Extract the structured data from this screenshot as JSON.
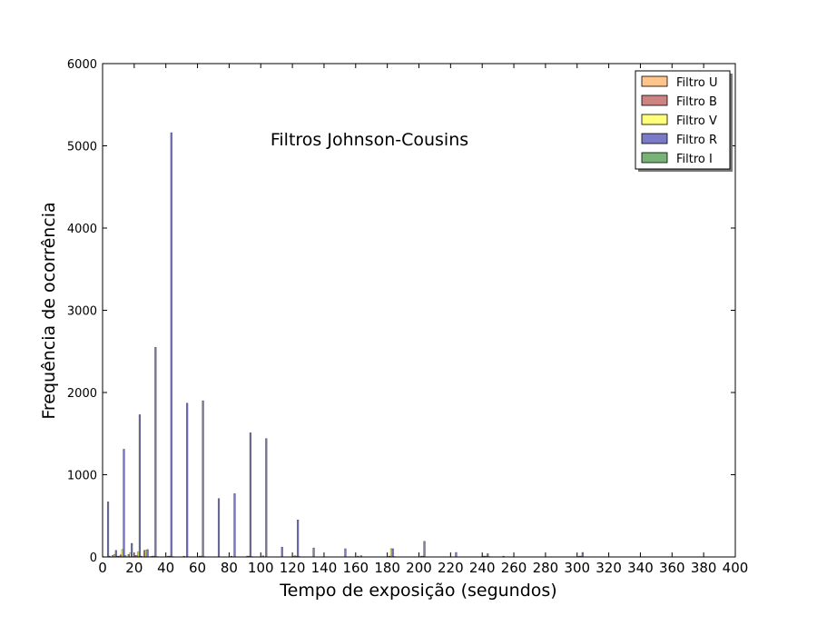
{
  "chart_data": {
    "type": "bar",
    "title": "Filtros Johnson-Cousins",
    "xlabel": "Tempo de exposição (segundos)",
    "ylabel": "Frequência de ocorrência",
    "xlim": [
      0,
      400
    ],
    "ylim": [
      0,
      6000
    ],
    "xticks": [
      0,
      20,
      40,
      60,
      80,
      100,
      120,
      140,
      160,
      180,
      200,
      220,
      240,
      260,
      280,
      300,
      320,
      340,
      360,
      380,
      400
    ],
    "yticks": [
      0,
      1000,
      2000,
      3000,
      4000,
      5000,
      6000
    ],
    "grid": false,
    "legend_position": "top-right",
    "series": [
      {
        "name": "Filtro U",
        "color": "#ffa54c",
        "points": [
          [
            0,
            5
          ],
          [
            10,
            10
          ],
          [
            20,
            15
          ],
          [
            30,
            5
          ],
          [
            40,
            5
          ],
          [
            60,
            5
          ],
          [
            120,
            5
          ],
          [
            180,
            5
          ],
          [
            240,
            10
          ],
          [
            300,
            5
          ]
        ]
      },
      {
        "name": "Filtro B",
        "color": "#b0413e",
        "points": [
          [
            5,
            20
          ],
          [
            10,
            25
          ],
          [
            15,
            30
          ],
          [
            20,
            20
          ],
          [
            25,
            80
          ],
          [
            30,
            10
          ],
          [
            40,
            10
          ],
          [
            50,
            10
          ],
          [
            60,
            10
          ],
          [
            80,
            10
          ],
          [
            90,
            10
          ],
          [
            100,
            15
          ],
          [
            120,
            15
          ],
          [
            160,
            10
          ],
          [
            180,
            10
          ],
          [
            200,
            10
          ],
          [
            240,
            10
          ],
          [
            300,
            10
          ]
        ]
      },
      {
        "name": "Filtro V",
        "color": "#ffff33",
        "points": [
          [
            5,
            30
          ],
          [
            10,
            90
          ],
          [
            15,
            50
          ],
          [
            20,
            60
          ],
          [
            25,
            80
          ],
          [
            30,
            10
          ],
          [
            40,
            10
          ],
          [
            60,
            10
          ],
          [
            90,
            10
          ],
          [
            120,
            10
          ],
          [
            180,
            100
          ],
          [
            200,
            10
          ],
          [
            240,
            10
          ],
          [
            300,
            10
          ]
        ]
      },
      {
        "name": "Filtro R",
        "color": "#3333a8",
        "points": [
          [
            0,
            670
          ],
          [
            5,
            80
          ],
          [
            10,
            1310
          ],
          [
            15,
            165
          ],
          [
            20,
            1730
          ],
          [
            25,
            90
          ],
          [
            30,
            2550
          ],
          [
            40,
            5160
          ],
          [
            50,
            1870
          ],
          [
            60,
            1900
          ],
          [
            70,
            710
          ],
          [
            80,
            770
          ],
          [
            90,
            1510
          ],
          [
            100,
            1440
          ],
          [
            110,
            120
          ],
          [
            120,
            450
          ],
          [
            130,
            110
          ],
          [
            150,
            100
          ],
          [
            160,
            15
          ],
          [
            180,
            100
          ],
          [
            200,
            190
          ],
          [
            220,
            55
          ],
          [
            240,
            40
          ],
          [
            250,
            10
          ],
          [
            300,
            55
          ]
        ]
      },
      {
        "name": "Filtro I",
        "color": "#2e8b2e",
        "points": [
          [
            0,
            10
          ],
          [
            5,
            10
          ],
          [
            10,
            15
          ],
          [
            20,
            10
          ],
          [
            30,
            5
          ],
          [
            40,
            5
          ],
          [
            60,
            5
          ],
          [
            90,
            5
          ],
          [
            120,
            5
          ],
          [
            180,
            5
          ],
          [
            240,
            5
          ]
        ]
      }
    ]
  }
}
